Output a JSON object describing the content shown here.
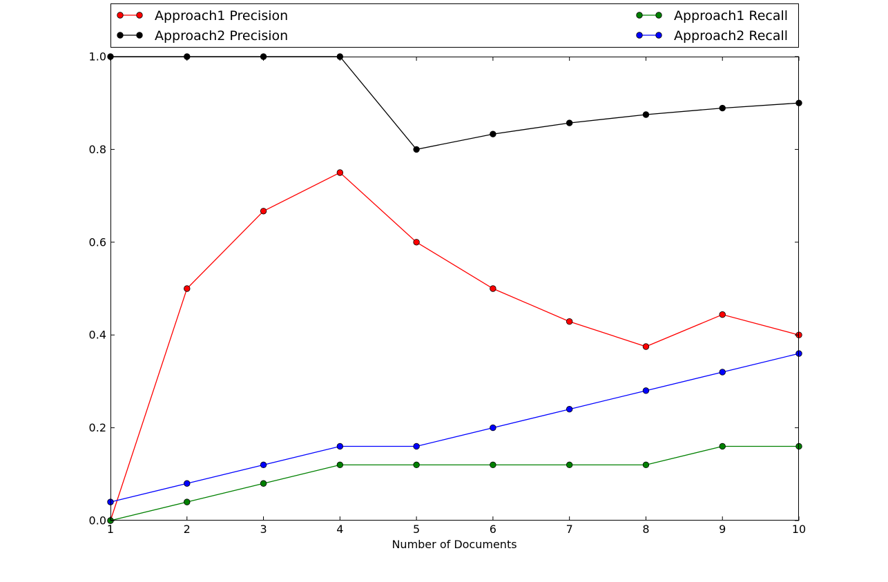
{
  "chart_data": {
    "type": "line",
    "title": "",
    "xlabel": "Number of Documents",
    "ylabel": "",
    "xlim": [
      1,
      10
    ],
    "ylim": [
      0.0,
      1.0
    ],
    "x": [
      1,
      2,
      3,
      4,
      5,
      6,
      7,
      8,
      9,
      10
    ],
    "x_ticks": [
      "1",
      "2",
      "3",
      "4",
      "5",
      "6",
      "7",
      "8",
      "9",
      "10"
    ],
    "y_ticks": [
      {
        "value": 0.0,
        "label": "0.0"
      },
      {
        "value": 0.2,
        "label": "0.2"
      },
      {
        "value": 0.4,
        "label": "0.4"
      },
      {
        "value": 0.6,
        "label": "0.6"
      },
      {
        "value": 0.8,
        "label": "0.8"
      },
      {
        "value": 1.0,
        "label": "1.0"
      }
    ],
    "grid": false,
    "legend_position": "top",
    "series": [
      {
        "name": "Approach1 Precision",
        "color": "#ff0000",
        "marker": "circle",
        "values": [
          0.0,
          0.5,
          0.667,
          0.75,
          0.6,
          0.5,
          0.429,
          0.375,
          0.444,
          0.4
        ]
      },
      {
        "name": "Approach2 Precision",
        "color": "#000000",
        "marker": "circle",
        "values": [
          1.0,
          1.0,
          1.0,
          1.0,
          0.8,
          0.833,
          0.857,
          0.875,
          0.889,
          0.9
        ]
      },
      {
        "name": "Approach1 Recall",
        "color": "#008000",
        "marker": "circle",
        "values": [
          0.0,
          0.04,
          0.08,
          0.12,
          0.12,
          0.12,
          0.12,
          0.12,
          0.16,
          0.16
        ]
      },
      {
        "name": "Approach2 Recall",
        "color": "#0000ff",
        "marker": "circle",
        "values": [
          0.04,
          0.08,
          0.12,
          0.16,
          0.16,
          0.2,
          0.24,
          0.28,
          0.32,
          0.36
        ]
      }
    ]
  }
}
